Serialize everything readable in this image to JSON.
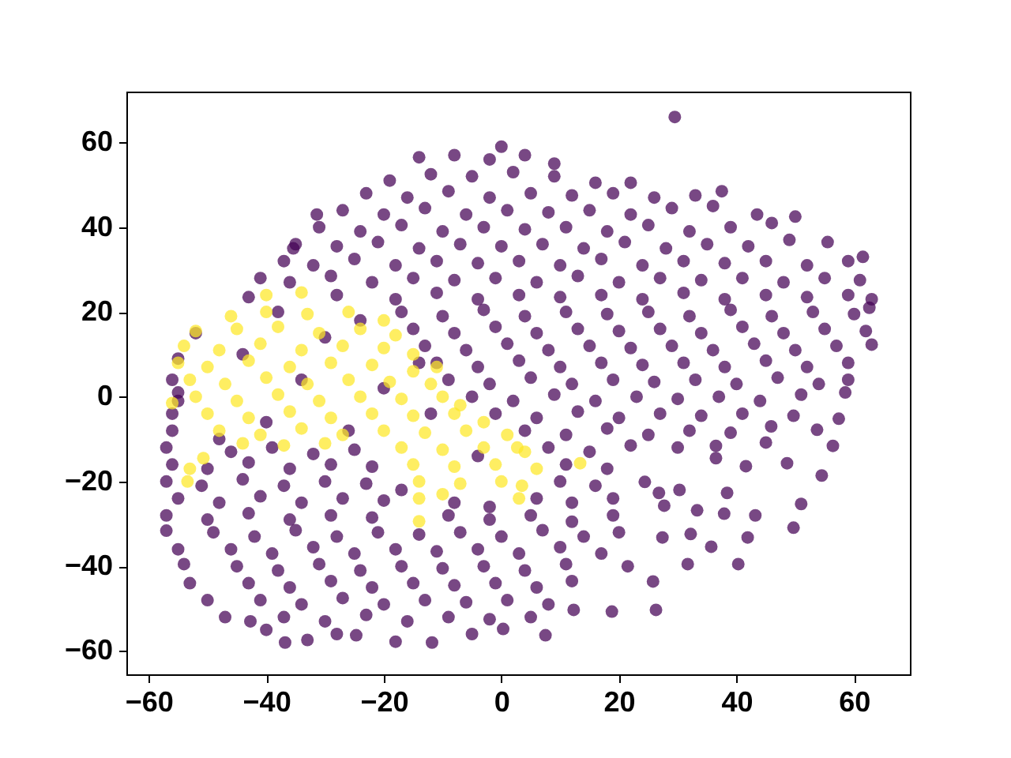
{
  "chart_data": {
    "type": "scatter",
    "xlim": [
      -63.8,
      69.5
    ],
    "ylim": [
      -65.5,
      72
    ],
    "xticks": [
      -60,
      -40,
      -20,
      0,
      20,
      40,
      60
    ],
    "yticks": [
      -60,
      -40,
      -20,
      0,
      20,
      40,
      60
    ],
    "marker": "circle",
    "series": [
      {
        "color": "#440154",
        "x": [
          29.5,
          0,
          -31.4,
          -35.4,
          -52,
          -55,
          -55,
          -14,
          -8,
          -2,
          4,
          9,
          -19,
          -12,
          -5,
          2,
          9,
          16,
          22,
          -23,
          -16,
          -9,
          -2,
          5,
          12,
          19,
          26,
          33,
          37.5,
          -27,
          -20,
          -13,
          -6,
          1,
          8,
          15,
          22,
          29,
          36,
          43.5,
          -31,
          -24,
          -17,
          -10,
          -3,
          4,
          11,
          18,
          25,
          32,
          39,
          46,
          50,
          -35,
          -28,
          -21,
          -14,
          -7,
          0,
          7,
          14,
          21,
          28,
          35,
          42,
          49,
          55.5,
          -37,
          -32,
          -25,
          -18,
          -11,
          -4,
          3,
          10,
          17,
          24,
          31,
          38,
          45,
          52,
          59,
          61.5,
          -41,
          -36,
          -29,
          -22,
          -15,
          -8,
          -1,
          6,
          13,
          20,
          27,
          34,
          41,
          48,
          55,
          61,
          -43,
          -28,
          -18,
          -11,
          -4,
          3,
          10,
          17,
          24,
          31,
          38,
          45,
          52,
          59,
          63,
          -17,
          -10,
          -3,
          4,
          11,
          18,
          25,
          32,
          39,
          46,
          53,
          60,
          62.6,
          -15,
          -8,
          -1,
          6,
          13,
          20,
          27,
          34,
          41,
          48,
          55,
          62,
          -13,
          -6,
          1,
          8,
          15,
          22,
          29,
          36,
          43,
          50,
          57,
          63,
          -11,
          -4,
          3,
          10,
          17,
          24,
          31,
          38,
          45,
          52,
          59,
          -56,
          -9,
          -2,
          5,
          12,
          19,
          26,
          33,
          40,
          47,
          54,
          59,
          -55,
          -5,
          2,
          9,
          16,
          23,
          30,
          37,
          44,
          51,
          58.5,
          -56,
          -1,
          6,
          13,
          20,
          27,
          34,
          41,
          49.7,
          57.4,
          -56,
          4,
          11,
          18,
          25,
          32,
          39,
          45.9,
          53.7,
          -57,
          -46,
          -39,
          -32,
          -25,
          8,
          15,
          22,
          30,
          36.5,
          45,
          56.4,
          -56,
          -50,
          -43,
          -36,
          -29,
          -22,
          11,
          18,
          36.5,
          41.6,
          48.6,
          54.5,
          -57,
          -51,
          -44,
          -37,
          -30,
          -23,
          -17,
          10,
          16,
          24.4,
          30.3,
          38.4,
          -55,
          -48,
          -41,
          -34,
          -27,
          -20,
          -8,
          -2,
          6,
          12,
          19,
          26.8,
          27.7,
          33.3,
          51,
          -57,
          -50,
          -43,
          -36,
          -29,
          -22,
          -9,
          -2,
          5,
          12,
          19,
          37.9,
          43.2,
          -57,
          -49,
          -42,
          -35,
          -28,
          -21,
          -14,
          -7,
          0,
          7,
          14,
          20,
          27.4,
          32.2,
          41.9,
          49.7,
          -55,
          -46,
          -39,
          -32,
          -25,
          -18,
          -11,
          -4,
          3,
          10,
          17,
          35.7,
          -54,
          -45,
          -38,
          -31,
          -24,
          -17,
          -10,
          -3,
          4,
          11,
          21.5,
          31.7,
          40.3,
          -53,
          -43,
          -36,
          -29,
          -22,
          -15,
          -8,
          -1,
          6,
          12,
          25.8,
          -50,
          -41,
          -34,
          -27,
          -20,
          -13,
          -6,
          1,
          8,
          12.3,
          18.8,
          26.3,
          -47,
          -42.7,
          -37,
          -30,
          -23,
          -16,
          -9,
          -2,
          5,
          -40,
          -36.8,
          -33,
          -28,
          -24.7,
          -18,
          -11.8,
          -5,
          0.3,
          7.5,
          -38,
          -30,
          -24,
          -44,
          -34,
          -20,
          -40,
          -26,
          -12,
          -4,
          -48,
          -14
        ],
        "values": [
          66,
          59,
          43,
          35,
          15,
          9,
          1,
          56.5,
          57,
          56,
          57,
          55,
          51,
          52.5,
          52,
          53,
          52,
          50.5,
          50.5,
          48,
          47,
          48.5,
          47,
          48,
          47.5,
          48,
          47,
          47.5,
          48.5,
          44,
          43,
          44.5,
          43,
          44,
          43.5,
          44,
          43,
          44.5,
          45,
          43,
          40,
          39,
          40.5,
          39,
          40,
          39.5,
          40,
          39,
          40.5,
          39,
          40,
          41,
          42.5,
          36,
          35.5,
          36.5,
          35,
          36,
          35.5,
          36,
          35,
          36.5,
          35,
          36,
          35.5,
          37,
          36.5,
          32,
          31,
          32.5,
          31,
          32,
          31.5,
          32,
          31,
          32.5,
          31,
          32,
          31.5,
          32,
          31,
          32,
          33,
          28,
          27,
          28.5,
          27,
          28,
          27.5,
          28,
          27,
          28.5,
          27,
          28,
          27.5,
          28,
          27,
          28,
          27.5,
          23.5,
          24,
          23,
          24.5,
          23,
          24,
          23.5,
          24,
          23,
          24.5,
          23,
          24,
          23.5,
          24,
          23,
          20,
          19,
          20.5,
          19,
          20,
          19.5,
          20,
          19,
          20.5,
          19,
          20,
          19.5,
          21,
          16,
          15,
          16.5,
          15,
          16,
          15.5,
          16,
          15,
          16.5,
          15,
          16,
          15.5,
          12,
          11,
          12.5,
          11,
          12,
          11.5,
          12,
          11,
          12.5,
          11,
          12,
          12.3,
          8,
          7,
          8.5,
          7,
          8,
          7.5,
          8,
          7,
          8.5,
          7,
          8,
          4,
          4,
          3,
          4.5,
          3,
          4,
          3.5,
          4,
          3,
          4.5,
          3,
          4,
          -1,
          0,
          -1,
          0.5,
          -1,
          0,
          -0.5,
          0,
          -1,
          0.5,
          1,
          -4,
          -4,
          -5,
          -3.5,
          -5,
          -4,
          -4.5,
          -4,
          -4.5,
          -5.2,
          -8,
          -8,
          -9,
          -7.5,
          -9,
          -8,
          -8.5,
          -7,
          -7.8,
          -12,
          -13,
          -12,
          -13.5,
          -12.5,
          -12,
          -13,
          -11.5,
          -12,
          -11.6,
          -10.8,
          -11.6,
          -16,
          -17,
          -15.5,
          -17,
          -16,
          -16.5,
          -16,
          -17,
          -14.5,
          -16.4,
          -15.7,
          -18.6,
          -20,
          -21,
          -19.5,
          -21,
          -20,
          -20.5,
          -22,
          -20,
          -21,
          -20.1,
          -22,
          -22.7,
          -24,
          -25,
          -23.5,
          -25,
          -24,
          -24.5,
          -25,
          -26,
          -24,
          -25,
          -24,
          -22.7,
          -25.7,
          -26.8,
          -25.3,
          -28,
          -29,
          -27.5,
          -29,
          -28,
          -28.5,
          -28,
          -29,
          -28,
          -29.5,
          -28,
          -27.6,
          -28,
          -31.6,
          -32,
          -33,
          -31.5,
          -33,
          -32,
          -32.5,
          -32,
          -33,
          -31.5,
          -33,
          -32,
          -33.2,
          -32.4,
          -33.2,
          -30.9,
          -36,
          -36,
          -37,
          -35.5,
          -37,
          -36,
          -36.5,
          -36,
          -37,
          -35.5,
          -37,
          -35.4,
          -39.5,
          -40,
          -41,
          -39.5,
          -41,
          -40,
          -40.5,
          -40,
          -41,
          -39.5,
          -40,
          -39.5,
          -39.5,
          -44,
          -44,
          -45,
          -43.5,
          -45,
          -44,
          -44.5,
          -44,
          -45,
          -43.5,
          -43.6,
          -48,
          -48,
          -49,
          -47.5,
          -49,
          -48,
          -48.5,
          -48,
          -49,
          -50.3,
          -50.7,
          -50.3,
          -52,
          -53,
          -52,
          -53,
          -51.5,
          -53,
          -52,
          -52.5,
          -52,
          -55,
          -58,
          -57.4,
          -56,
          -56.3,
          -57.8,
          -58,
          -56,
          -54.8,
          -56.3,
          20,
          14,
          18,
          10,
          4,
          2,
          -6,
          -8,
          -4,
          -14,
          -10,
          8
        ]
      },
      {
        "color": "#fde725",
        "x": [
          -40,
          -34,
          -46,
          -40,
          -33,
          -26,
          -20,
          -52,
          -45,
          -38,
          -31,
          -24,
          -18,
          -54,
          -48,
          -41,
          -34,
          -27,
          -20,
          -15,
          -55,
          -50,
          -43,
          -36,
          -29,
          -22,
          -15,
          -11,
          -53,
          -47,
          -40,
          -33,
          -26,
          -19,
          -12,
          -56,
          -52,
          -45,
          -38,
          -31,
          -24,
          -17,
          -10,
          -7,
          -50,
          -43,
          -36,
          -29,
          -22,
          -15,
          -8,
          -3,
          -48,
          -41,
          -34,
          -27,
          -20,
          -13,
          -6,
          1,
          2.7,
          -44,
          -37,
          -30,
          -17,
          -10,
          -3,
          4,
          -53,
          -15,
          -8,
          -1,
          6,
          13.4,
          -53.4,
          -14,
          -7,
          0,
          3.5,
          -14,
          -10,
          3,
          -14,
          -50.7
        ],
        "values": [
          24,
          24.6,
          19,
          20,
          19.5,
          20,
          18,
          15.5,
          16,
          16.5,
          15,
          16,
          14.5,
          12,
          11,
          12.5,
          11,
          12,
          11.5,
          10,
          8,
          7,
          8.5,
          7,
          8,
          7.5,
          6,
          7,
          4,
          3,
          4.5,
          3,
          4,
          3.5,
          3,
          -1.5,
          0,
          -1,
          0.5,
          -1,
          0,
          -0.5,
          0,
          -2,
          -4,
          -5,
          -3.5,
          -5,
          -4,
          -4.5,
          -4,
          -6,
          -8,
          -9,
          -7.5,
          -9,
          -8,
          -8.5,
          -8,
          -9,
          -12,
          -11,
          -11.5,
          -11,
          -12,
          -12.5,
          -12,
          -13,
          -17,
          -16,
          -16.5,
          -16,
          -17,
          -15.7,
          -20,
          -20,
          -20.5,
          -20,
          -21,
          -24,
          -23,
          -24,
          -29.4,
          -14.5
        ]
      }
    ]
  }
}
